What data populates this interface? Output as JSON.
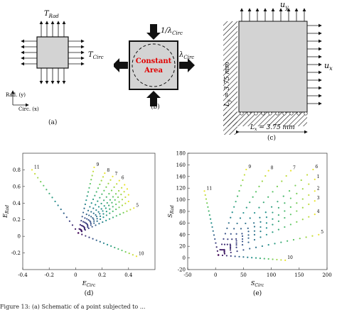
{
  "panel_a": {
    "t_rad": "T",
    "t_rad_sub": "Rad",
    "t_circ": "T",
    "t_circ_sub": "Circ",
    "axis_rad": "Rad. (y)",
    "axis_circ": "Circ. (x)",
    "caption": "(a)"
  },
  "panel_b": {
    "top_label": "1/λ",
    "top_sub": "Circ",
    "right_label": "λ",
    "right_sub": "Circ",
    "center_line1": "Constant",
    "center_line2": "Area",
    "caption": "(b)"
  },
  "panel_c": {
    "uy": "u",
    "uy_sub": "y",
    "ux": "u",
    "ux_sub": "x",
    "ly": "L",
    "ly_sub": "y",
    "ly_value": " = 3.75 mm",
    "lx": "L",
    "lx_sub": "x",
    "lx_value": " = 3.75 mm",
    "caption": "(c)"
  },
  "colors": {
    "panel_fill": "#d3d3d3",
    "center_text": "#e00000",
    "low": "#3b2a8f",
    "mid": "#21a58c",
    "high": "#f2e41d"
  },
  "chart_data": [
    {
      "type": "scatter",
      "caption": "(d)",
      "xlabel": "E",
      "xlabel_sub": "Circ",
      "ylabel": "E",
      "ylabel_sub": "Rad",
      "xlim": [
        -0.4,
        0.6
      ],
      "ylim": [
        -0.4,
        1.0
      ],
      "xticks": [
        "-0.4",
        "-0.2",
        "0",
        "0.2",
        "0.4"
      ],
      "xtick_values": [
        -0.4,
        -0.2,
        0,
        0.2,
        0.4
      ],
      "yticks": [
        "-0.2",
        "0",
        "0.2",
        "0.4",
        "0.6",
        "0.8"
      ],
      "ytick_values": [
        -0.2,
        0,
        0.2,
        0.4,
        0.6,
        0.8
      ],
      "series": [
        {
          "label": "11",
          "end": [
            -0.33,
            0.8
          ]
        },
        {
          "label": "9",
          "end": [
            0.14,
            0.83
          ]
        },
        {
          "label": "8",
          "end": [
            0.22,
            0.76
          ]
        },
        {
          "label": "7",
          "end": [
            0.28,
            0.72
          ]
        },
        {
          "label": "6",
          "end": [
            0.33,
            0.67
          ]
        },
        {
          "label": "",
          "end": [
            0.37,
            0.62
          ]
        },
        {
          "label": "",
          "end": [
            0.39,
            0.57
          ]
        },
        {
          "label": "",
          "end": [
            0.4,
            0.5
          ]
        },
        {
          "label": "",
          "end": [
            0.4,
            0.42
          ]
        },
        {
          "label": "5",
          "end": [
            0.44,
            0.34
          ]
        },
        {
          "label": "10",
          "end": [
            0.46,
            -0.24
          ]
        }
      ],
      "start": [
        0.02,
        0.04
      ]
    },
    {
      "type": "scatter",
      "caption": "(e)",
      "xlabel": "S",
      "xlabel_sub": "Circ",
      "ylabel": "S",
      "ylabel_sub": "Rad",
      "xlim": [
        -50,
        200
      ],
      "ylim": [
        -20,
        180
      ],
      "xticks": [
        "-50",
        "0",
        "50",
        "100",
        "150",
        "200"
      ],
      "xtick_values": [
        -50,
        0,
        50,
        100,
        150,
        200
      ],
      "yticks": [
        "-20",
        "0",
        "20",
        "40",
        "60",
        "80",
        "100",
        "120",
        "140",
        "160",
        "180"
      ],
      "ytick_values": [
        -20,
        0,
        20,
        40,
        60,
        80,
        100,
        120,
        140,
        160,
        180
      ],
      "series": [
        {
          "label": "11",
          "end": [
            -20,
            115
          ]
        },
        {
          "label": "9",
          "end": [
            55,
            152
          ]
        },
        {
          "label": "8",
          "end": [
            95,
            150
          ]
        },
        {
          "label": "7",
          "end": [
            135,
            150
          ]
        },
        {
          "label": "6",
          "end": [
            175,
            152
          ]
        },
        {
          "label": "1",
          "end": [
            178,
            135
          ]
        },
        {
          "label": "2",
          "end": [
            178,
            115
          ]
        },
        {
          "label": "3",
          "end": [
            178,
            98
          ]
        },
        {
          "label": "4",
          "end": [
            178,
            75
          ]
        },
        {
          "label": "5",
          "end": [
            185,
            40
          ]
        },
        {
          "label": "10",
          "end": [
            125,
            -4
          ]
        }
      ],
      "start": [
        5,
        5
      ]
    }
  ],
  "footer": "Figure 13: (a) Schematic of a point subjected to ..."
}
